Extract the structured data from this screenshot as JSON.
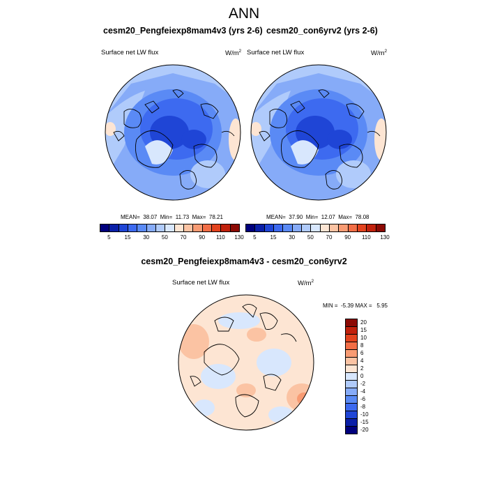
{
  "title": "ANN",
  "variable": "Surface net LW flux",
  "units_base": "W/m",
  "units_exp": "2",
  "panels": [
    {
      "title": "cesm20_Pengfeiexp8mam4v3 (yrs 2-6)",
      "mean_label": "MEAN=",
      "mean": "38.07",
      "min_label": "Min=",
      "min": "11.73",
      "max_label": "Max=",
      "max": "78.21"
    },
    {
      "title": "cesm20_con6yrv2 (yrs 2-6)",
      "mean_label": "MEAN=",
      "mean": "37.90",
      "min_label": "Min=",
      "min": "12.07",
      "max_label": "Max=",
      "max": "78.08"
    }
  ],
  "diff": {
    "title": "cesm20_Pengfeiexp8mam4v3 - cesm20_con6yrv2",
    "min_label": "MIN =",
    "min": "-5.39",
    "max_label": "MAX =",
    "max": "5.95"
  },
  "colorbar_h": {
    "colors": [
      "#00007d",
      "#0a1fa8",
      "#1f45d6",
      "#3d6af0",
      "#5a8af5",
      "#86abf8",
      "#b0cbfb",
      "#d8e7fd",
      "#fde5d3",
      "#fbc3a3",
      "#f89b73",
      "#f26e46",
      "#e3431e",
      "#c1210c",
      "#8c0a04"
    ],
    "labels": [
      "5",
      "15",
      "30",
      "50",
      "70",
      "90",
      "110",
      "130"
    ]
  },
  "colorbar_v": {
    "colors": [
      "#8c0a04",
      "#c1210c",
      "#e3431e",
      "#f26e46",
      "#f89b73",
      "#fbc3a3",
      "#fde5d3",
      "#d8e7fd",
      "#b0cbfb",
      "#86abf8",
      "#5a8af5",
      "#3d6af0",
      "#1f45d6",
      "#0a1fa8",
      "#00007d"
    ],
    "labels": [
      "20",
      "15",
      "10",
      "8",
      "6",
      "4",
      "2",
      "0",
      "-2",
      "-4",
      "-6",
      "-8",
      "-10",
      "-15",
      "-20"
    ]
  }
}
